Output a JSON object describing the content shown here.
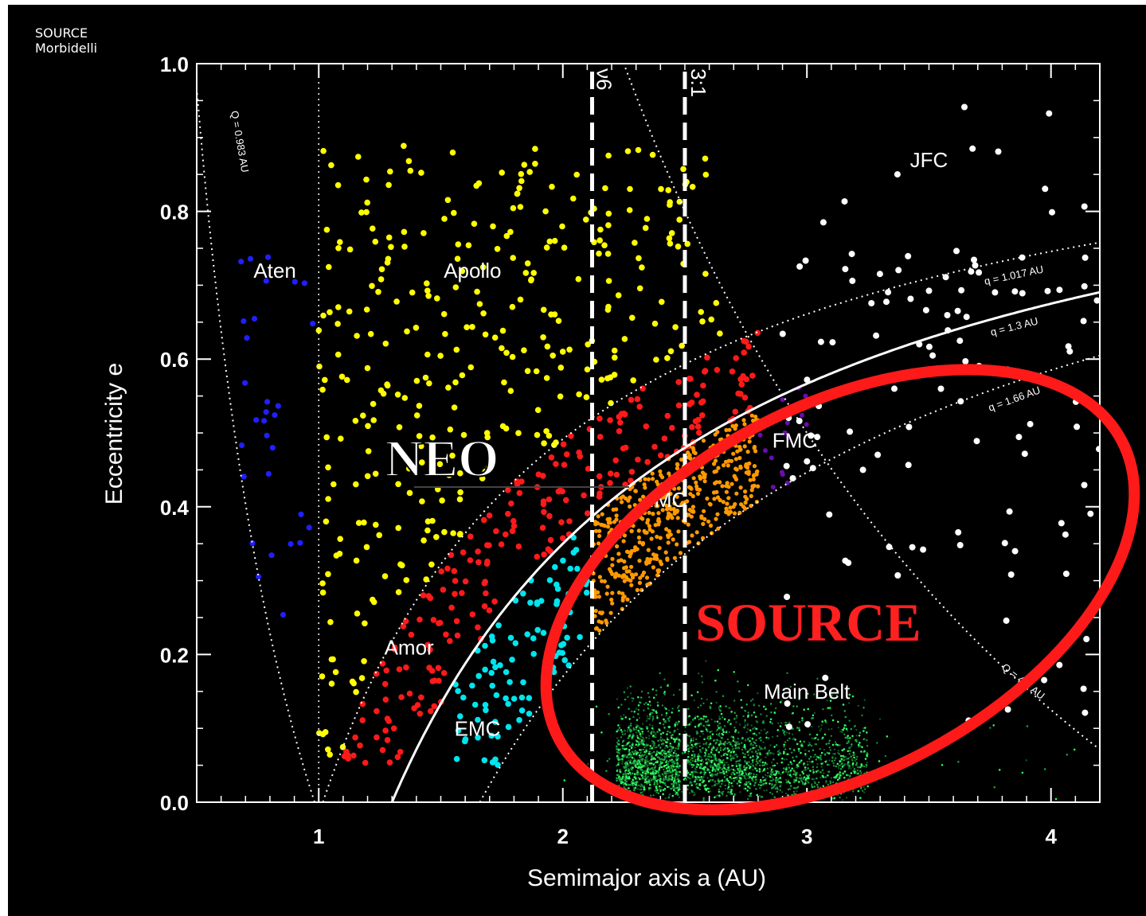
{
  "credit": {
    "line1": "SOURCE",
    "line2": "Morbidelli"
  },
  "chart_data": {
    "type": "scatter",
    "title": "",
    "xlabel": "Semimajor axis a (AU)",
    "ylabel": "Eccentricity e",
    "xlim": [
      0.5,
      4.2
    ],
    "ylim": [
      0.0,
      1.0
    ],
    "xticks": [
      "1",
      "2",
      "3",
      "4"
    ],
    "yticks": [
      "0.0",
      "0.2",
      "0.4",
      "0.6",
      "0.8",
      "1.0"
    ],
    "resonances": [
      {
        "label": "ν6",
        "a": 2.12
      },
      {
        "label": "3:1",
        "a": 2.5
      }
    ],
    "curves": [
      {
        "label": "Q = 0.983 AU",
        "Q": 0.983
      },
      {
        "label": "q = 1.017 AU",
        "q": 1.017
      },
      {
        "label": "q = 1.3 AU",
        "q": 1.3
      },
      {
        "label": "q = 1.66 AU",
        "q": 1.66
      },
      {
        "label": "Q = 4.5 AU",
        "Q": 4.5
      }
    ],
    "regions": [
      {
        "label": "Aten",
        "a": 0.82,
        "e": 0.71
      },
      {
        "label": "Apollo",
        "a": 1.63,
        "e": 0.71
      },
      {
        "label": "Amor",
        "a": 1.37,
        "e": 0.2
      },
      {
        "label": "EMC",
        "a": 1.65,
        "e": 0.09
      },
      {
        "label": "IMC",
        "a": 2.43,
        "e": 0.4
      },
      {
        "label": "FMC",
        "a": 2.95,
        "e": 0.48
      },
      {
        "label": "JFC",
        "a": 3.5,
        "e": 0.86
      },
      {
        "label": "Main Belt",
        "a": 3.0,
        "e": 0.14
      }
    ],
    "series": [
      {
        "name": "Aten",
        "color": "#2020ff",
        "count": 30
      },
      {
        "name": "Apollo",
        "color": "#ffff00",
        "count": 330
      },
      {
        "name": "Amor",
        "color": "#ff1a1a",
        "count": 220
      },
      {
        "name": "EMC",
        "color": "#00e5ee",
        "count": 90
      },
      {
        "name": "IMC",
        "color": "#ff9900",
        "count": 500
      },
      {
        "name": "FMC",
        "color": "#6a0dad",
        "count": 15
      },
      {
        "name": "JFC",
        "color": "#ffffff",
        "count": 120
      },
      {
        "name": "Main Belt",
        "color": "#22dd55",
        "count": 9000
      }
    ]
  },
  "annotations": {
    "neo": {
      "text": "NEO",
      "color": "#ffffff"
    },
    "source": {
      "text": "SOURCE",
      "color": "#ff2020"
    },
    "ellipse_color": "#ff1a1a"
  }
}
